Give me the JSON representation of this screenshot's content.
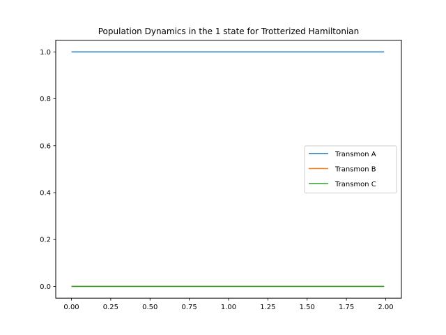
{
  "chart_data": {
    "type": "line",
    "title": "Population Dynamics in the 1 state for Trotterized Hamiltonian",
    "xlabel": "",
    "ylabel": "",
    "xlim": [
      -0.1,
      2.1
    ],
    "ylim": [
      -0.05,
      1.05
    ],
    "xticks": [
      0.0,
      0.25,
      0.5,
      0.75,
      1.0,
      1.25,
      1.5,
      1.75,
      2.0
    ],
    "xtick_labels": [
      "0.00",
      "0.25",
      "0.50",
      "0.75",
      "1.00",
      "1.25",
      "1.50",
      "1.75",
      "2.00"
    ],
    "yticks": [
      0.0,
      0.2,
      0.4,
      0.6,
      0.8,
      1.0
    ],
    "ytick_labels": [
      "0.0",
      "0.2",
      "0.4",
      "0.6",
      "0.8",
      "1.0"
    ],
    "grid": false,
    "legend_position": "center-right",
    "series": [
      {
        "name": "Transmon A",
        "color": "#1f77b4",
        "x": [
          0.0,
          1.99
        ],
        "y": [
          1.0,
          1.0
        ]
      },
      {
        "name": "Transmon B",
        "color": "#ff7f0e",
        "x": [
          0.0,
          1.99
        ],
        "y": [
          0.0,
          0.0
        ]
      },
      {
        "name": "Transmon C",
        "color": "#2ca02c",
        "x": [
          0.0,
          1.99
        ],
        "y": [
          0.0,
          0.0
        ]
      }
    ]
  }
}
